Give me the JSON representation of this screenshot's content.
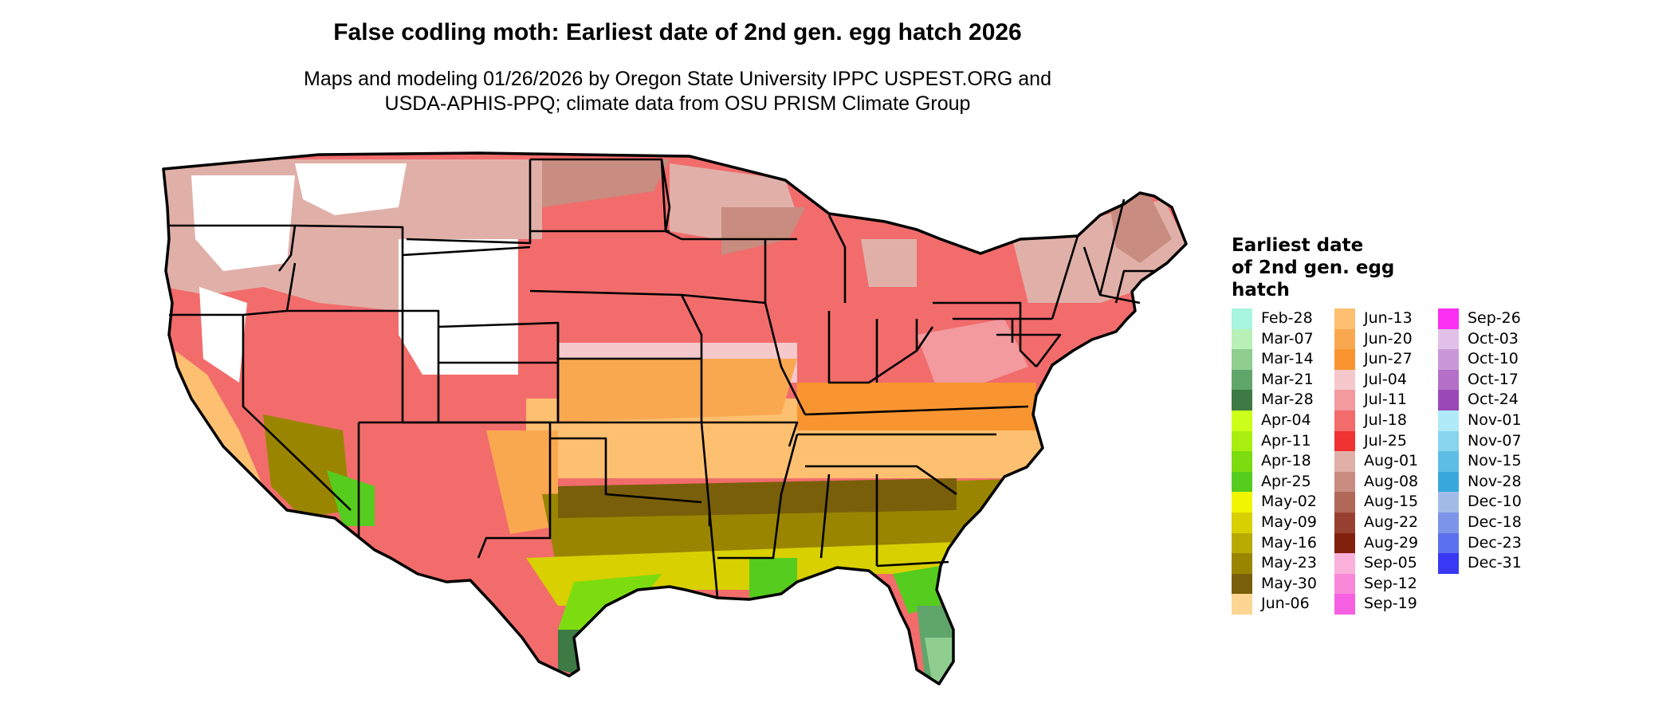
{
  "title": "False codling moth: Earliest date of 2nd gen. egg hatch 2026",
  "subtitle_lines": [
    "Maps and modeling 01/26/2026 by Oregon State University IPPC USPEST.ORG and",
    "USDA-APHIS-PPQ; climate data from OSU PRISM Climate Group"
  ],
  "legend": {
    "title_lines": [
      "Earliest date",
      "of 2nd gen. egg",
      "hatch"
    ],
    "columns": [
      [
        {
          "label": "Feb-28",
          "color": "#a8f5e0"
        },
        {
          "label": "Mar-07",
          "color": "#b8f0b8"
        },
        {
          "label": "Mar-14",
          "color": "#8fce8f"
        },
        {
          "label": "Mar-21",
          "color": "#60a66b"
        },
        {
          "label": "Mar-28",
          "color": "#3d7a44"
        },
        {
          "label": "Apr-04",
          "color": "#ccff1a"
        },
        {
          "label": "Apr-11",
          "color": "#a8ee10"
        },
        {
          "label": "Apr-18",
          "color": "#7ddc10"
        },
        {
          "label": "Apr-25",
          "color": "#55cc1e"
        },
        {
          "label": "May-02",
          "color": "#f2f500"
        },
        {
          "label": "May-09",
          "color": "#d8d000"
        },
        {
          "label": "May-16",
          "color": "#b8aa00"
        },
        {
          "label": "May-23",
          "color": "#9a8500"
        },
        {
          "label": "May-30",
          "color": "#7a5f0a"
        },
        {
          "label": "Jun-06",
          "color": "#fdd694"
        }
      ],
      [
        {
          "label": "Jun-13",
          "color": "#fcc070"
        },
        {
          "label": "Jun-20",
          "color": "#faa850"
        },
        {
          "label": "Jun-27",
          "color": "#f89530"
        },
        {
          "label": "Jul-04",
          "color": "#f5c8cc"
        },
        {
          "label": "Jul-11",
          "color": "#f29a9e"
        },
        {
          "label": "Jul-18",
          "color": "#f26c6c"
        },
        {
          "label": "Jul-25",
          "color": "#f03232"
        },
        {
          "label": "Aug-01",
          "color": "#e0b0a8"
        },
        {
          "label": "Aug-08",
          "color": "#c88c80"
        },
        {
          "label": "Aug-15",
          "color": "#b06858"
        },
        {
          "label": "Aug-22",
          "color": "#984030"
        },
        {
          "label": "Aug-29",
          "color": "#82200e"
        },
        {
          "label": "Sep-05",
          "color": "#fbb0dc"
        },
        {
          "label": "Sep-12",
          "color": "#f888d8"
        },
        {
          "label": "Sep-19",
          "color": "#f560e2"
        }
      ],
      [
        {
          "label": "Sep-26",
          "color": "#fa30f2"
        },
        {
          "label": "Oct-03",
          "color": "#e0c0e8"
        },
        {
          "label": "Oct-10",
          "color": "#ca98d8"
        },
        {
          "label": "Oct-17",
          "color": "#b470c8"
        },
        {
          "label": "Oct-24",
          "color": "#9a48b8"
        },
        {
          "label": "Nov-01",
          "color": "#b0eaf8"
        },
        {
          "label": "Nov-07",
          "color": "#88d4ef"
        },
        {
          "label": "Nov-15",
          "color": "#5ebde4"
        },
        {
          "label": "Nov-28",
          "color": "#38a8dc"
        },
        {
          "label": "Dec-10",
          "color": "#a2bce8"
        },
        {
          "label": "Dec-18",
          "color": "#7c95e8"
        },
        {
          "label": "Dec-23",
          "color": "#5a70f0"
        },
        {
          "label": "Dec-31",
          "color": "#3838f5"
        }
      ]
    ]
  }
}
